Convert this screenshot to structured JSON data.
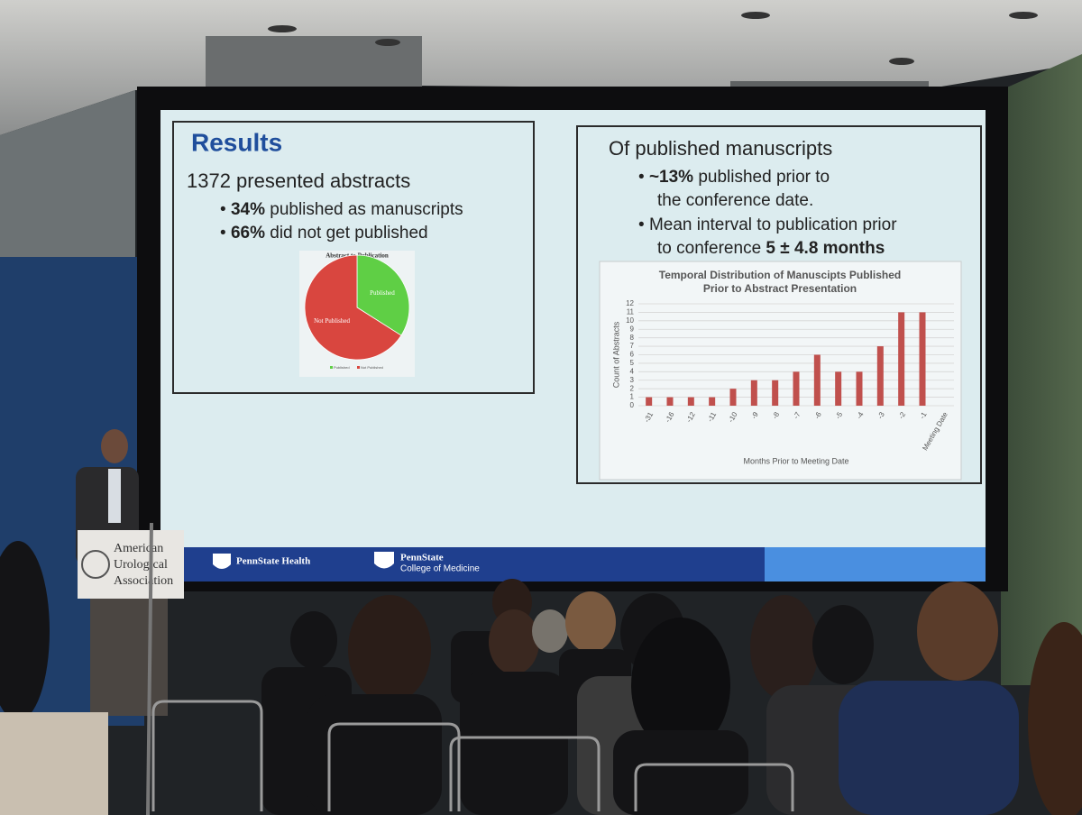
{
  "slide": {
    "title": "Results",
    "summary": "1372 presented abstracts",
    "left_bullets": [
      {
        "bold": "34%",
        "text": " published as manuscripts"
      },
      {
        "bold": "66%",
        "text": " did not get published"
      }
    ],
    "right_heading": "Of published manuscripts",
    "right_bullets": [
      {
        "lines": [
          "~13%",
          " published prior to",
          "the conference date."
        ]
      },
      {
        "lines": [
          "Mean interval to publication prior",
          "to conference ",
          "5 ± 4.8 months"
        ]
      }
    ],
    "footer": {
      "health": "PennState Health",
      "college_name": "PennState",
      "college_sub": "College of Medicine"
    }
  },
  "podium": {
    "lines": [
      "American",
      "Urological",
      "Association"
    ]
  },
  "chart_data": [
    {
      "type": "pie",
      "title": "Abstract to Publication",
      "categories": [
        "Published",
        "Not Published"
      ],
      "values": [
        34,
        66
      ],
      "colors": [
        "#5fcf45",
        "#d9463f"
      ]
    },
    {
      "type": "bar",
      "title": [
        "Temporal Distribution of Manuscipts Published",
        "Prior to Abstract Presentation"
      ],
      "categories": [
        "-31",
        "-16",
        "-12",
        "-11",
        "-10",
        "-9",
        "-8",
        "-7",
        "-6",
        "-5",
        "-4",
        "-3",
        "-2",
        "-1",
        "Meeting Date"
      ],
      "values": [
        1,
        1,
        1,
        1,
        2,
        3,
        3,
        4,
        6,
        4,
        4,
        7,
        11,
        11,
        null
      ],
      "color": "#c0504d",
      "y_label": "Count of Abstracts",
      "x_label": "Months Prior to Meeting Date",
      "ylim": [
        0,
        12
      ],
      "yticks": [
        0,
        1,
        2,
        3,
        4,
        5,
        6,
        7,
        8,
        9,
        10,
        11,
        12
      ],
      "grid": true
    }
  ]
}
